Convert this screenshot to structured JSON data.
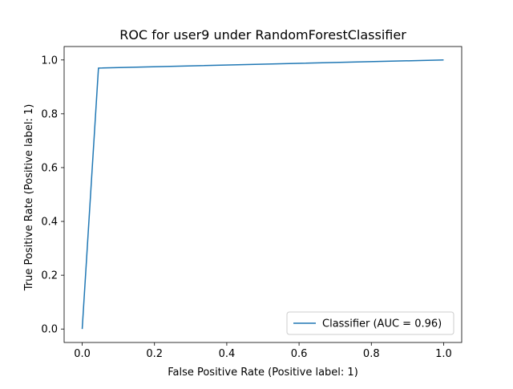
{
  "chart_data": {
    "type": "line",
    "title": "ROC for user9 under RandomForestClassifier",
    "xlabel": "False Positive Rate (Positive label: 1)",
    "ylabel": "True Positive Rate (Positive label: 1)",
    "xlim": [
      -0.05,
      1.05
    ],
    "ylim": [
      -0.05,
      1.05
    ],
    "xticks": [
      0.0,
      0.2,
      0.4,
      0.6,
      0.8,
      1.0
    ],
    "xtick_labels": [
      "0.0",
      "0.2",
      "0.4",
      "0.6",
      "0.8",
      "1.0"
    ],
    "yticks": [
      0.0,
      0.2,
      0.4,
      0.6,
      0.8,
      1.0
    ],
    "ytick_labels": [
      "0.0",
      "0.2",
      "0.4",
      "0.6",
      "0.8",
      "1.0"
    ],
    "grid": false,
    "legend_position": "lower-right",
    "series": [
      {
        "name": "Classifier (AUC = 0.96)",
        "color": "#1f77b4",
        "x": [
          0.0,
          0.045,
          1.0
        ],
        "y": [
          0.0,
          0.97,
          1.0
        ]
      }
    ]
  }
}
